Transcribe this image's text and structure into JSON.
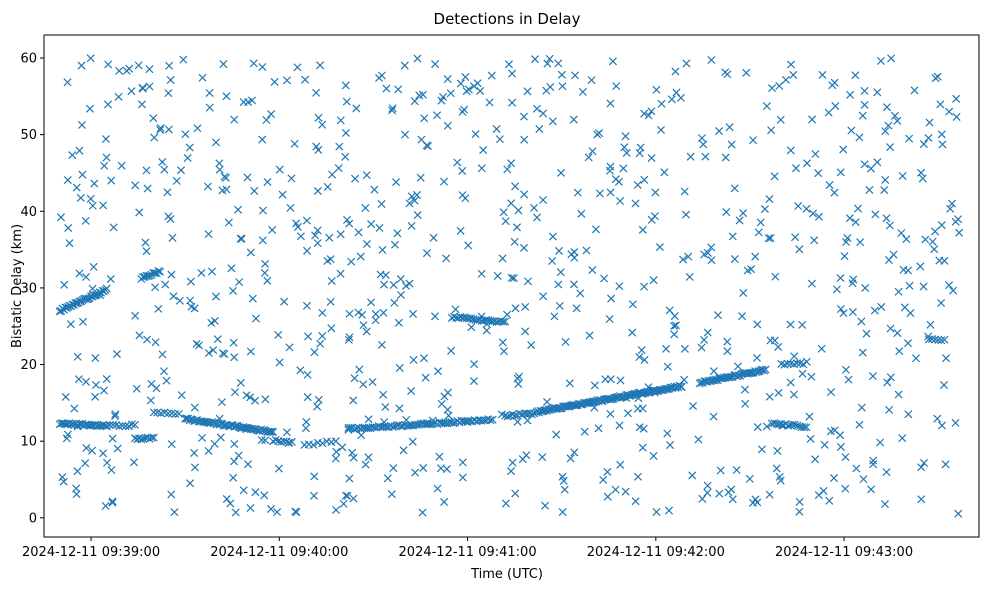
{
  "chart_data": {
    "type": "scatter",
    "title": "Detections in Delay",
    "xlabel": "Time (UTC)",
    "ylabel": "Bistatic Delay (km)",
    "marker": "x",
    "color": "#1f77b4",
    "grid": false,
    "legend": "none",
    "xlim": [
      "2024-12-11 09:38:45",
      "2024-12-11 09:43:43"
    ],
    "ylim": [
      -2.5,
      63
    ],
    "x_ticks": [
      "2024-12-11 09:39:00",
      "2024-12-11 09:40:00",
      "2024-12-11 09:41:00",
      "2024-12-11 09:42:00",
      "2024-12-11 09:43:00"
    ],
    "y_ticks": [
      0,
      10,
      20,
      30,
      40,
      50,
      60
    ],
    "track_series": [
      {
        "x_start": "2024-12-11 09:38:50",
        "x_end": "2024-12-11 09:39:05",
        "y_start": 27.0,
        "y_end": 29.8,
        "count": 34
      },
      {
        "x_start": "2024-12-11 09:39:16",
        "x_end": "2024-12-11 09:39:22",
        "y_start": 31.2,
        "y_end": 32.2,
        "count": 12
      },
      {
        "x_start": "2024-12-11 09:38:50",
        "x_end": "2024-12-11 09:39:05",
        "y_start": 12.3,
        "y_end": 12.0,
        "count": 30
      },
      {
        "x_start": "2024-12-11 09:39:05",
        "x_end": "2024-12-11 09:39:14",
        "y_start": 12.0,
        "y_end": 12.1,
        "count": 10
      },
      {
        "x_start": "2024-12-11 09:39:14",
        "x_end": "2024-12-11 09:39:20",
        "y_start": 10.3,
        "y_end": 10.4,
        "count": 10
      },
      {
        "x_start": "2024-12-11 09:39:20",
        "x_end": "2024-12-11 09:39:28",
        "y_start": 13.8,
        "y_end": 13.6,
        "count": 8
      },
      {
        "x_start": "2024-12-11 09:39:30",
        "x_end": "2024-12-11 09:39:58",
        "y_start": 12.9,
        "y_end": 11.2,
        "count": 60
      },
      {
        "x_start": "2024-12-11 09:39:58",
        "x_end": "2024-12-11 09:40:04",
        "y_start": 10.1,
        "y_end": 9.9,
        "count": 8
      },
      {
        "x_start": "2024-12-11 09:40:08",
        "x_end": "2024-12-11 09:40:18",
        "y_start": 9.5,
        "y_end": 10.0,
        "count": 8
      },
      {
        "x_start": "2024-12-11 09:40:22",
        "x_end": "2024-12-11 09:41:00",
        "y_start": 11.6,
        "y_end": 12.6,
        "count": 60
      },
      {
        "x_start": "2024-12-11 09:41:00",
        "x_end": "2024-12-11 09:41:08",
        "y_start": 12.6,
        "y_end": 12.9,
        "count": 12
      },
      {
        "x_start": "2024-12-11 09:41:12",
        "x_end": "2024-12-11 09:41:22",
        "y_start": 13.3,
        "y_end": 13.7,
        "count": 14
      },
      {
        "x_start": "2024-12-11 09:41:22",
        "x_end": "2024-12-11 09:42:08",
        "y_start": 13.8,
        "y_end": 17.2,
        "count": 110
      },
      {
        "x_start": "2024-12-11 09:42:14",
        "x_end": "2024-12-11 09:42:35",
        "y_start": 17.6,
        "y_end": 19.3,
        "count": 45
      },
      {
        "x_start": "2024-12-11 09:42:40",
        "x_end": "2024-12-11 09:42:47",
        "y_start": 20.0,
        "y_end": 20.1,
        "count": 8
      },
      {
        "x_start": "2024-12-11 09:42:37",
        "x_end": "2024-12-11 09:42:48",
        "y_start": 12.3,
        "y_end": 11.9,
        "count": 16
      },
      {
        "x_start": "2024-12-11 09:40:55",
        "x_end": "2024-12-11 09:41:12",
        "y_start": 26.2,
        "y_end": 25.5,
        "count": 26
      },
      {
        "x_start": "2024-12-11 09:43:27",
        "x_end": "2024-12-11 09:43:32",
        "y_start": 23.3,
        "y_end": 23.3,
        "count": 6
      }
    ],
    "noise": {
      "x_range": [
        "2024-12-11 09:38:50",
        "2024-12-11 09:43:37"
      ],
      "y_range": [
        0.5,
        60
      ],
      "count": 900,
      "description": "scattered detections across full time and delay range"
    }
  }
}
